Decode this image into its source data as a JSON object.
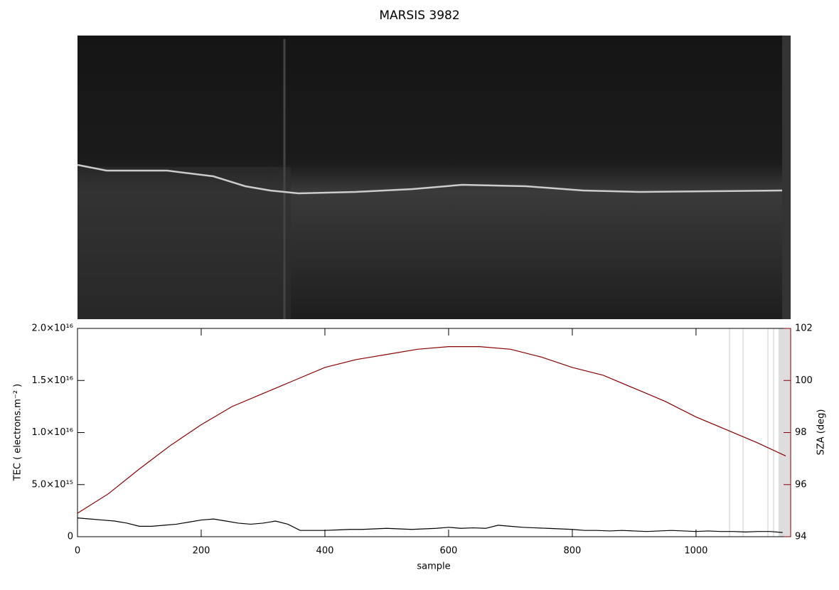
{
  "chart_data": {
    "type": "line",
    "title": "MARSIS 3982",
    "x_label": "sample",
    "y_label": "TEC ( electrons.m⁻² )",
    "y2_label": "SZA (deg)",
    "xlim": [
      0,
      1153
    ],
    "xticks": [
      0,
      200,
      400,
      600,
      800,
      1000
    ],
    "ylim": [
      0,
      2e+16
    ],
    "yticks": [
      0,
      {
        "value": 5000000000000000.0,
        "label": "5.0×10¹⁵"
      },
      {
        "value": 1e+16,
        "label": "1.0×10¹⁶"
      },
      {
        "value": 1.5e+16,
        "label": "1.5×10¹⁶"
      },
      {
        "value": 2e+16,
        "label": "2.0×10¹⁶"
      }
    ],
    "y2lim": [
      94,
      102
    ],
    "y2ticks": [
      94,
      96,
      98,
      100,
      102
    ],
    "y2_color": "#8b0000",
    "series": [
      {
        "name": "TEC",
        "color": "#000000",
        "x": [
          0,
          20,
          40,
          60,
          80,
          100,
          120,
          140,
          160,
          180,
          200,
          220,
          240,
          260,
          280,
          300,
          320,
          340,
          360,
          380,
          400,
          420,
          440,
          460,
          480,
          500,
          520,
          540,
          560,
          580,
          600,
          620,
          640,
          660,
          680,
          700,
          720,
          740,
          760,
          780,
          800,
          820,
          840,
          860,
          880,
          900,
          920,
          940,
          960,
          980,
          1000,
          1020,
          1040,
          1060,
          1080,
          1100,
          1120,
          1140
        ],
        "values": [
          1800000000000000.0,
          1700000000000000.0,
          1600000000000000.0,
          1500000000000000.0,
          1300000000000000.0,
          1000000000000000.0,
          1000000000000000.0,
          1100000000000000.0,
          1200000000000000.0,
          1400000000000000.0,
          1600000000000000.0,
          1700000000000000.0,
          1500000000000000.0,
          1300000000000000.0,
          1200000000000000.0,
          1300000000000000.0,
          1500000000000000.0,
          1200000000000000.0,
          600000000000000.0,
          600000000000000.0,
          600000000000000.0,
          650000000000000.0,
          700000000000000.0,
          700000000000000.0,
          750000000000000.0,
          800000000000000.0,
          750000000000000.0,
          700000000000000.0,
          750000000000000.0,
          800000000000000.0,
          900000000000000.0,
          800000000000000.0,
          850000000000000.0,
          800000000000000.0,
          1100000000000000.0,
          1000000000000000.0,
          900000000000000.0,
          850000000000000.0,
          800000000000000.0,
          750000000000000.0,
          700000000000000.0,
          600000000000000.0,
          600000000000000.0,
          550000000000000.0,
          600000000000000.0,
          550000000000000.0,
          500000000000000.0,
          550000000000000.0,
          600000000000000.0,
          550000000000000.0,
          500000000000000.0,
          550000000000000.0,
          500000000000000.0,
          500000000000000.0,
          450000000000000.0,
          500000000000000.0,
          500000000000000.0,
          400000000000000.0
        ]
      },
      {
        "name": "SZA",
        "color": "#8b0000",
        "axis": "y2",
        "x": [
          0,
          50,
          100,
          150,
          200,
          250,
          300,
          350,
          400,
          450,
          500,
          550,
          600,
          650,
          700,
          750,
          800,
          850,
          900,
          950,
          1000,
          1050,
          1100,
          1145
        ],
        "values": [
          94.9,
          95.65,
          96.6,
          97.5,
          98.3,
          99.0,
          99.5,
          100.0,
          100.5,
          100.8,
          101.0,
          101.2,
          101.3,
          101.3,
          101.2,
          100.9,
          100.5,
          100.2,
          99.7,
          99.2,
          98.6,
          98.1,
          97.6,
          97.1
        ]
      }
    ]
  }
}
